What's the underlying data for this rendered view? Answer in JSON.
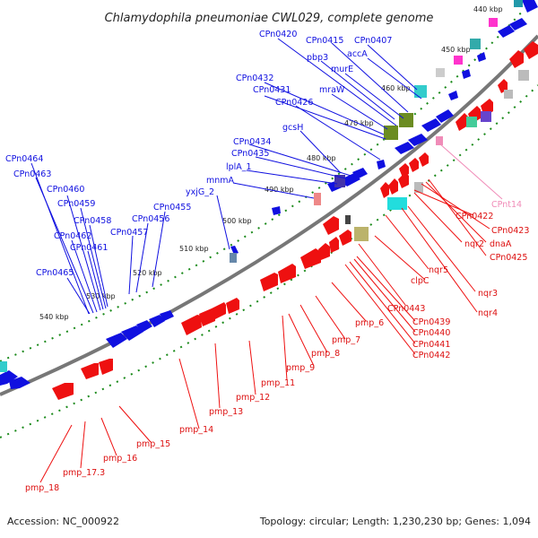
{
  "title": "Chlamydophila pneumoniae CWL029, complete genome",
  "footer": {
    "accession": "Accession: NC_000922",
    "summary": "Topology: circular; Length: 1,230,230 bp; Genes: 1,094"
  },
  "kbp_ticks": [
    "440 kbp",
    "450 kbp",
    "460 kbp",
    "470 kbp",
    "480 kbp",
    "490 kbp",
    "500 kbp",
    "510 kbp",
    "520 kbp",
    "530 kbp",
    "540 kbp"
  ],
  "colors": {
    "forward": "#1010e0",
    "reverse": "#ee1010",
    "rna": "#f08cb8",
    "ruler": "#1a8a1a",
    "backbone": "#777777"
  },
  "forward_labels": [
    "CPn0420",
    "CPn0415",
    "CPn0407",
    "pbp3",
    "accA",
    "murE",
    "CPn0432",
    "CPn0431",
    "mraW",
    "CPn0426",
    "gcsH",
    "CPn0434",
    "CPn0435",
    "lplA_1",
    "mnmA",
    "yxjG_2",
    "CPn0455",
    "CPn0456",
    "CPn0457",
    "CPn0458",
    "CPn0459",
    "CPn0460",
    "CPn0461",
    "CPn0462",
    "CPn0463",
    "CPn0464",
    "CPn0465"
  ],
  "reverse_labels": [
    "CPn0422",
    "CPn0423",
    "dnaA",
    "CPn0425",
    "nqr2",
    "nqr3",
    "nqr4",
    "nqr5",
    "clpC",
    "CPn0443",
    "CPn0439",
    "CPn0440",
    "CPn0441",
    "CPn0442",
    "pmp_6",
    "pmp_7",
    "pmp_8",
    "pmp_9",
    "pmp_11",
    "pmp_12",
    "pmp_13",
    "pmp_14",
    "pmp_15",
    "pmp_16",
    "pmp_17.3",
    "pmp_18"
  ],
  "rna_labels": [
    "CPnt14"
  ]
}
